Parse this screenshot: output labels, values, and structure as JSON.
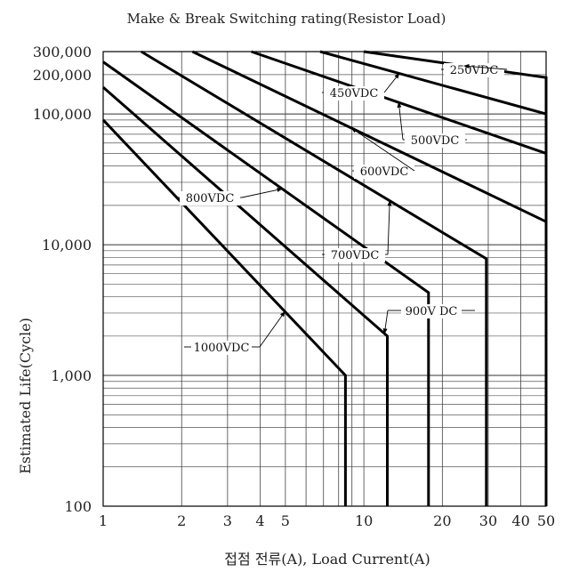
{
  "chart_data": {
    "type": "line",
    "title": "Make & Break Switching rating(Resistor Load)",
    "xlabel": "접점 전류(A), Load Current(A)",
    "ylabel": "Estimated Life(Cycle)",
    "x_scale": "log",
    "y_scale": "log",
    "xlim": [
      1,
      50
    ],
    "ylim": [
      100,
      300000
    ],
    "x_ticks": [
      {
        "value": 1,
        "label": "1"
      },
      {
        "value": 2,
        "label": "2"
      },
      {
        "value": 3,
        "label": "3"
      },
      {
        "value": 4,
        "label": "4"
      },
      {
        "value": 5,
        "label": "5"
      },
      {
        "value": 10,
        "label": "10"
      },
      {
        "value": 20,
        "label": "20"
      },
      {
        "value": 30,
        "label": "30"
      },
      {
        "value": 40,
        "label": "40"
      },
      {
        "value": 50,
        "label": "50"
      }
    ],
    "y_ticks": [
      {
        "value": 100,
        "label": "100"
      },
      {
        "value": 1000,
        "label": "1,000"
      },
      {
        "value": 10000,
        "label": "10,000"
      },
      {
        "value": 100000,
        "label": "100,000"
      },
      {
        "value": 200000,
        "label": "200,000"
      },
      {
        "value": 300000,
        "label": "300,000"
      }
    ],
    "grid": true,
    "series": [
      {
        "name": "250VDC",
        "points": [
          [
            10,
            300000
          ],
          [
            50,
            190000
          ]
        ],
        "drop_to_min": true
      },
      {
        "name": "450VDC",
        "points": [
          [
            6.8,
            300000
          ],
          [
            50,
            100000
          ]
        ],
        "drop_to_min": false
      },
      {
        "name": "500VDC",
        "points": [
          [
            3.7,
            300000
          ],
          [
            50,
            50000
          ]
        ],
        "drop_to_min": false
      },
      {
        "name": "600VDC",
        "points": [
          [
            2.2,
            300000
          ],
          [
            50,
            15000
          ]
        ],
        "drop_to_min": false
      },
      {
        "name": "700VDC",
        "points": [
          [
            1.4,
            300000
          ],
          [
            29.5,
            7800
          ]
        ],
        "drop_to_min": true
      },
      {
        "name": "800VDC",
        "points": [
          [
            1,
            250000
          ],
          [
            17.7,
            4300
          ]
        ],
        "drop_to_min": true
      },
      {
        "name": "900V DC",
        "points": [
          [
            1,
            160000
          ],
          [
            12.3,
            2000
          ]
        ],
        "drop_to_min": true
      },
      {
        "name": "1000VDC",
        "points": [
          [
            1,
            90000
          ],
          [
            8.5,
            1000
          ]
        ],
        "drop_to_min": true
      }
    ],
    "annotations": [
      {
        "text": "250VDC",
        "series": "250VDC"
      },
      {
        "text": "450VDC",
        "series": "450VDC"
      },
      {
        "text": "500VDC",
        "series": "500VDC"
      },
      {
        "text": "600VDC",
        "series": "600VDC"
      },
      {
        "text": "700VDC",
        "series": "700VDC"
      },
      {
        "text": "800VDC",
        "series": "800VDC"
      },
      {
        "text": "900V DC",
        "series": "900V DC"
      },
      {
        "text": "1000VDC",
        "series": "1000VDC"
      }
    ]
  }
}
